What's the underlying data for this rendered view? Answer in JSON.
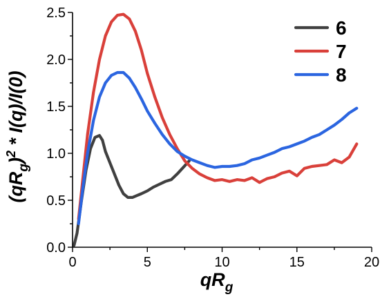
{
  "chart_data": {
    "type": "line",
    "xlabel": "qRg",
    "ylabel": "(qRg)² * I(q)/I(0)",
    "xlabel_parts": {
      "base": "qR",
      "sub": "g"
    },
    "ylabel_parts": {
      "open": "(qR",
      "sub": "g",
      "close": ")",
      "sup": "2",
      "rest": " * I(q)/I(0)"
    },
    "xlim": [
      0,
      20
    ],
    "ylim": [
      0,
      2.5
    ],
    "xticks": [
      0,
      5,
      10,
      15,
      20
    ],
    "yticks": [
      0.0,
      0.5,
      1.0,
      1.5,
      2.0,
      2.5
    ],
    "xtick_labels": [
      "0",
      "5",
      "10",
      "15",
      "20"
    ],
    "ytick_labels": [
      "0.0",
      "0.5",
      "1.0",
      "1.5",
      "2.0",
      "2.5"
    ],
    "grid": false,
    "legend_position": "top-right",
    "series": [
      {
        "name": "6",
        "color": "#404040",
        "x": [
          0.1,
          0.3,
          0.6,
          0.9,
          1.2,
          1.5,
          1.8,
          2.0,
          2.2,
          2.5,
          2.8,
          3.1,
          3.4,
          3.7,
          4.0,
          4.3,
          4.6,
          5.0,
          5.4,
          5.8,
          6.2,
          6.6,
          7.0,
          7.4,
          7.8
        ],
        "values": [
          0.02,
          0.15,
          0.5,
          0.82,
          1.05,
          1.17,
          1.19,
          1.14,
          1.02,
          0.9,
          0.78,
          0.66,
          0.57,
          0.53,
          0.53,
          0.55,
          0.57,
          0.6,
          0.64,
          0.67,
          0.7,
          0.72,
          0.78,
          0.85,
          0.92
        ]
      },
      {
        "name": "7",
        "color": "#d9403a",
        "x": [
          0.4,
          0.7,
          1.0,
          1.4,
          1.8,
          2.2,
          2.6,
          3.0,
          3.4,
          3.8,
          4.2,
          4.6,
          5.0,
          5.5,
          6.0,
          6.5,
          7.0,
          7.5,
          8.0,
          8.5,
          9.0,
          9.5,
          10.0,
          10.5,
          11.0,
          11.5,
          12.0,
          12.5,
          13.0,
          13.5,
          14.0,
          14.5,
          15.0,
          15.5,
          16.0,
          16.5,
          17.0,
          17.5,
          18.0,
          18.5,
          19.0
        ],
        "values": [
          0.3,
          0.75,
          1.2,
          1.65,
          2.0,
          2.25,
          2.4,
          2.47,
          2.48,
          2.43,
          2.3,
          2.1,
          1.85,
          1.6,
          1.38,
          1.2,
          1.05,
          0.92,
          0.84,
          0.78,
          0.74,
          0.71,
          0.72,
          0.7,
          0.72,
          0.71,
          0.74,
          0.69,
          0.73,
          0.75,
          0.79,
          0.81,
          0.76,
          0.84,
          0.86,
          0.87,
          0.88,
          0.93,
          0.9,
          0.96,
          1.1
        ]
      },
      {
        "name": "8",
        "color": "#2b65e0",
        "x": [
          0.4,
          0.7,
          1.0,
          1.4,
          1.8,
          2.2,
          2.6,
          3.0,
          3.4,
          3.8,
          4.2,
          4.6,
          5.0,
          5.5,
          6.0,
          6.5,
          7.0,
          7.5,
          8.0,
          8.5,
          9.0,
          9.5,
          10.0,
          10.5,
          11.0,
          11.5,
          12.0,
          12.5,
          13.0,
          13.5,
          14.0,
          14.5,
          15.0,
          15.5,
          16.0,
          16.5,
          17.0,
          17.5,
          18.0,
          18.5,
          19.0
        ],
        "values": [
          0.25,
          0.65,
          1.0,
          1.35,
          1.6,
          1.75,
          1.83,
          1.86,
          1.86,
          1.8,
          1.7,
          1.58,
          1.45,
          1.32,
          1.2,
          1.1,
          1.02,
          0.97,
          0.93,
          0.9,
          0.87,
          0.85,
          0.86,
          0.86,
          0.87,
          0.89,
          0.93,
          0.95,
          0.98,
          1.01,
          1.05,
          1.07,
          1.1,
          1.13,
          1.17,
          1.2,
          1.25,
          1.3,
          1.36,
          1.43,
          1.48
        ]
      }
    ]
  }
}
